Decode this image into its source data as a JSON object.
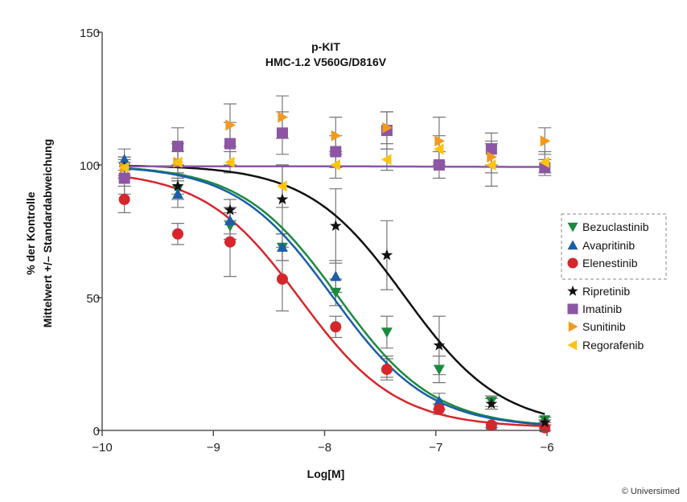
{
  "chart_data": {
    "type": "scatter",
    "title": [
      "p-KIT",
      "HMC-1.2 V560G/D816V"
    ],
    "xlabel": "Log[M]",
    "ylabel": [
      "% der Kontrolle",
      "Mittelwert +/– Standardabweichung"
    ],
    "xlim": [
      -10,
      -6
    ],
    "ylim": [
      0,
      150
    ],
    "xticks": [
      -10,
      -9,
      -8,
      -7,
      -6
    ],
    "xtick_labels": [
      "−10",
      "−9",
      "−8",
      "−7",
      "−6"
    ],
    "yticks": [
      0,
      50,
      100,
      150
    ],
    "ytick_labels": [
      "0",
      "50",
      "100",
      "150"
    ],
    "grid": false,
    "legend_position": "right",
    "x": [
      -9.8,
      -9.32,
      -8.85,
      -8.38,
      -7.9,
      -7.44,
      -6.97,
      -6.5,
      -6.02
    ],
    "series": [
      {
        "name": "Bezuclastinib",
        "color": "#1b8a3f",
        "marker": "triangle-down",
        "boxed": true,
        "values": [
          99,
          91,
          77,
          69,
          52,
          37,
          23,
          11,
          4
        ],
        "sd": [
          4,
          4,
          5,
          5,
          5,
          6,
          5,
          2,
          1
        ],
        "fit": {
          "top": 100,
          "bottom": 1,
          "logIC50": -7.88,
          "hill": 1.0
        }
      },
      {
        "name": "Avapritinib",
        "color": "#1a5ea8",
        "marker": "triangle-up",
        "boxed": true,
        "values": [
          102,
          89,
          79,
          69,
          58,
          24,
          11,
          2,
          1
        ],
        "sd": [
          4,
          5,
          5,
          5,
          6,
          4,
          3,
          1,
          1
        ],
        "fit": {
          "top": 100,
          "bottom": 1,
          "logIC50": -7.93,
          "hill": 1.0
        }
      },
      {
        "name": "Elenestinib",
        "color": "#d7262b",
        "marker": "circle",
        "boxed": true,
        "values": [
          87,
          74,
          71,
          57,
          39,
          23,
          8,
          2,
          1
        ],
        "sd": [
          5,
          4,
          13,
          12,
          4,
          4,
          2,
          1,
          1
        ],
        "fit": {
          "top": 98,
          "bottom": 1,
          "logIC50": -8.22,
          "hill": 1.0
        }
      },
      {
        "name": "Ripretinib",
        "color": "#111111",
        "marker": "star",
        "boxed": false,
        "values": [
          99,
          92,
          83,
          87,
          77,
          66,
          32,
          10,
          3
        ],
        "sd": [
          3,
          3,
          4,
          13,
          14,
          13,
          11,
          2,
          1
        ],
        "fit": {
          "top": 100,
          "bottom": 1,
          "logIC50": -7.28,
          "hill": 1.0
        }
      },
      {
        "name": "Imatinib",
        "color": "#8c56a4",
        "marker": "square",
        "boxed": false,
        "values": [
          95,
          107,
          108,
          112,
          105,
          113,
          100,
          106,
          99
        ],
        "sd": [
          6,
          7,
          8,
          8,
          6,
          7,
          5,
          6,
          3
        ],
        "fit": {
          "top": 99.5,
          "bottom": 99.2,
          "logIC50": -7.0,
          "hill": 1.0
        }
      },
      {
        "name": "Sunitinib",
        "color": "#f29a1d",
        "marker": "triangle-right",
        "boxed": false,
        "values": [
          99,
          101,
          115,
          118,
          111,
          114,
          109,
          103,
          109
        ],
        "sd": [
          4,
          7,
          8,
          8,
          7,
          6,
          9,
          6,
          5
        ],
        "fit": null
      },
      {
        "name": "Regorafenib",
        "color": "#ffc40f",
        "marker": "triangle-left",
        "boxed": false,
        "values": [
          99,
          101,
          101,
          92,
          100,
          102,
          106,
          100,
          101
        ],
        "sd": [
          4,
          4,
          4,
          8,
          5,
          4,
          5,
          8,
          4
        ],
        "fit": null
      }
    ]
  },
  "copyright": "© Universimed"
}
